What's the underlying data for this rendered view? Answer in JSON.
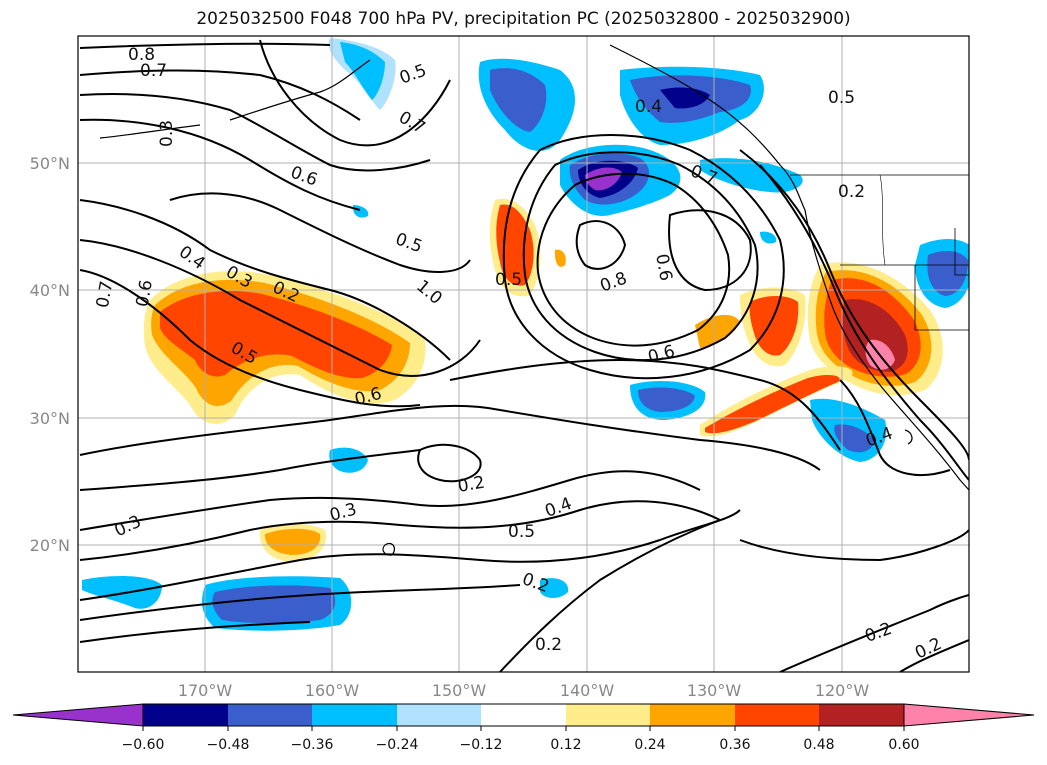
{
  "title": "2025032500 F048 700 hPa PV, precipitation PC (2025032800 - 2025032900)",
  "lat_labels": [
    "50°N",
    "40°N",
    "30°N",
    "20°N"
  ],
  "lon_labels": [
    "170°W",
    "160°W",
    "150°W",
    "140°W",
    "130°W",
    "120°W"
  ],
  "colorbar": {
    "ticks": [
      "−0.60",
      "−0.48",
      "−0.36",
      "−0.24",
      "−0.12",
      "0.12",
      "0.24",
      "0.36",
      "0.48",
      "0.60"
    ],
    "colors": [
      "#9932cc",
      "#00008b",
      "#3a5fcd",
      "#00bfff",
      "#b0e2ff",
      "#ffffff",
      "#ffec8b",
      "#ffa500",
      "#ff4500",
      "#b22222",
      "#ff82ab"
    ]
  },
  "contour_labels": [
    "0.8",
    "0.7",
    "0.3",
    "0.6",
    "0.5",
    "0.7",
    "0.4",
    "0.5",
    "0.7",
    "0.2",
    "0.6",
    "0.5",
    "0.4",
    "0.3",
    "0.2",
    "0.7",
    "0.6",
    "0.5",
    "0.5",
    "1.0",
    "0.8",
    "0.6",
    "0.6",
    "0.4",
    "0.2",
    "0.3",
    "0.4",
    "0.5",
    "0.3",
    "0.2",
    "0.2",
    "0.2",
    "0.2"
  ]
}
